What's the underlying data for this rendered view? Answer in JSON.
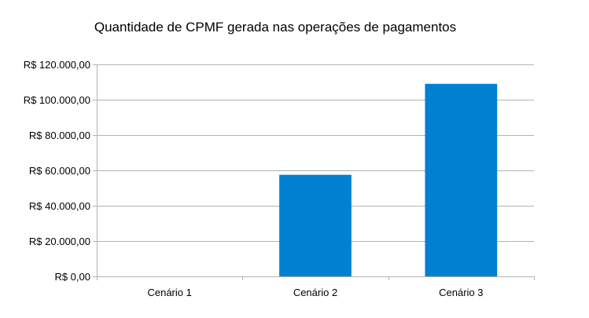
{
  "colors": {
    "bar": "#0080d0",
    "gridline": "#b3b3b3",
    "axis": "#b3b3b3",
    "text": "#000000",
    "background": "#ffffff"
  },
  "chart_data": {
    "type": "bar",
    "title": "Quantidade de CPMF gerada nas operações de pagamentos",
    "xlabel": "",
    "ylabel": "",
    "categories": [
      "Cenário 1",
      "Cenário 2",
      "Cenário 3"
    ],
    "values": [
      0,
      57500,
      109000
    ],
    "ylim": [
      0,
      120000
    ],
    "yticks": [
      0,
      20000,
      40000,
      60000,
      80000,
      100000,
      120000
    ],
    "ytick_labels": [
      "R$ 0,00",
      "R$ 20.000,00",
      "R$ 40.000,00",
      "R$ 60.000,00",
      "R$ 80.000,00",
      "R$ 100.000,00",
      "R$ 120.000,00"
    ],
    "grid": true,
    "legend": "none"
  }
}
